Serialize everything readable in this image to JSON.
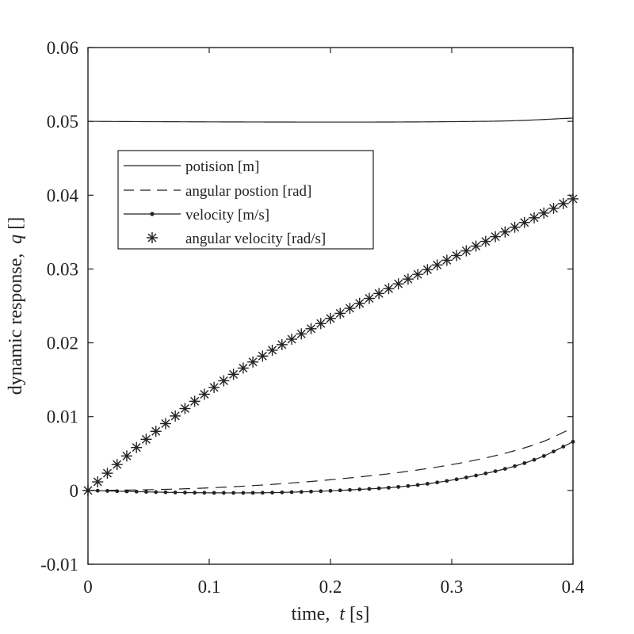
{
  "chart_data": {
    "type": "line",
    "title": "",
    "xlabel": "time,  t [s]",
    "xlabel_parts": [
      "time,  ",
      "t",
      " [s]"
    ],
    "ylabel": "dynamic response,  q []",
    "ylabel_parts": [
      "dynamic response,  ",
      "q",
      " []"
    ],
    "xlim": [
      0,
      0.4
    ],
    "ylim": [
      -0.01,
      0.06
    ],
    "xticks": [
      0,
      0.1,
      0.2,
      0.3,
      0.4
    ],
    "xtick_labels": [
      "0",
      "0.1",
      "0.2",
      "0.3",
      "0.4"
    ],
    "yticks": [
      -0.01,
      0,
      0.01,
      0.02,
      0.03,
      0.04,
      0.05,
      0.06
    ],
    "ytick_labels": [
      "-0.01",
      "0",
      "0.01",
      "0.02",
      "0.03",
      "0.04",
      "0.05",
      "0.06"
    ],
    "grid": false,
    "legend_position": "upper-left",
    "series": [
      {
        "name": "potision [m]",
        "style": "solid",
        "x": [
          0,
          0.05,
          0.1,
          0.15,
          0.2,
          0.25,
          0.3,
          0.35,
          0.4
        ],
        "y": [
          0.05,
          0.04996,
          0.04993,
          0.04991,
          0.0499,
          0.04991,
          0.04996,
          0.05008,
          0.05045
        ]
      },
      {
        "name": "angular postion [rad]",
        "style": "dashed",
        "x": [
          0,
          0.025,
          0.05,
          0.075,
          0.1,
          0.125,
          0.15,
          0.175,
          0.2,
          0.225,
          0.25,
          0.275,
          0.3,
          0.325,
          0.35,
          0.375,
          0.4
        ],
        "y": [
          0,
          3e-05,
          0.0001,
          0.0002,
          0.00035,
          0.00055,
          0.0008,
          0.0011,
          0.00145,
          0.00185,
          0.0023,
          0.00285,
          0.0035,
          0.0043,
          0.0053,
          0.0066,
          0.0085
        ]
      },
      {
        "name": "velocity [m/s]",
        "style": "line-dot",
        "x": [
          0,
          0.025,
          0.05,
          0.075,
          0.1,
          0.125,
          0.15,
          0.175,
          0.2,
          0.225,
          0.25,
          0.275,
          0.3,
          0.325,
          0.35,
          0.375,
          0.4
        ],
        "y": [
          0,
          -0.0001,
          -0.0002,
          -0.00028,
          -0.00032,
          -0.00033,
          -0.0003,
          -0.0002,
          -5e-05,
          0.00015,
          0.0004,
          0.0008,
          0.0014,
          0.0022,
          0.0032,
          0.0046,
          0.0066
        ]
      },
      {
        "name": "angular velocity [rad/s]",
        "style": "asterisk",
        "x": [
          0,
          0.05,
          0.1,
          0.15,
          0.2,
          0.25,
          0.3,
          0.35,
          0.4
        ],
        "y": [
          0,
          0.0072,
          0.0135,
          0.0188,
          0.0233,
          0.0275,
          0.0315,
          0.0355,
          0.0395
        ]
      }
    ]
  }
}
